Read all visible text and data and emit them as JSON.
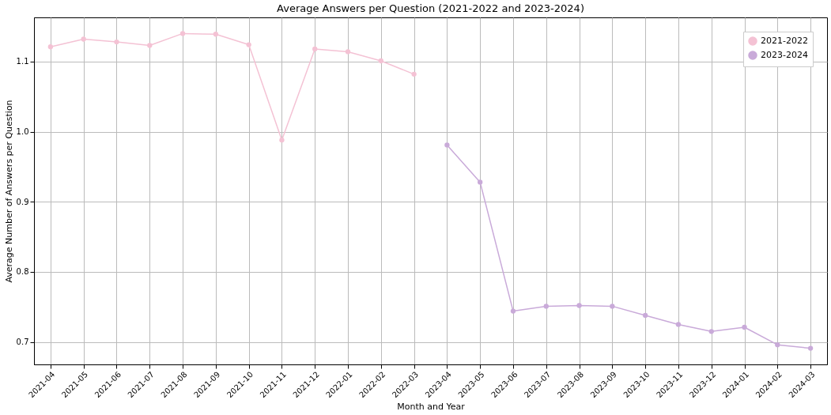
{
  "chart_data": {
    "type": "line",
    "title": "Average Answers per Question (2021-2022 and 2023-2024)",
    "xlabel": "Month and Year",
    "ylabel": "Average Number of Answers per Question",
    "categories": [
      "2021-04",
      "2021-05",
      "2021-06",
      "2021-07",
      "2021-08",
      "2021-09",
      "2021-10",
      "2021-11",
      "2021-12",
      "2022-01",
      "2022-02",
      "2022-03",
      "2023-04",
      "2023-05",
      "2023-06",
      "2023-07",
      "2023-08",
      "2023-09",
      "2023-10",
      "2023-11",
      "2023-12",
      "2024-01",
      "2024-02",
      "2024-03"
    ],
    "series": [
      {
        "name": "2021-2022",
        "color": "#f4c2d4",
        "values": [
          1.121,
          1.132,
          1.128,
          1.123,
          1.14,
          1.139,
          1.124,
          0.988,
          1.118,
          1.114,
          1.101,
          1.082,
          null,
          null,
          null,
          null,
          null,
          null,
          null,
          null,
          null,
          null,
          null,
          null
        ]
      },
      {
        "name": "2023-2024",
        "color": "#c9aad9",
        "values": [
          null,
          null,
          null,
          null,
          null,
          null,
          null,
          null,
          null,
          null,
          null,
          null,
          0.981,
          0.928,
          0.744,
          0.751,
          0.752,
          0.751,
          0.738,
          0.725,
          0.715,
          0.721,
          0.696,
          0.691
        ]
      }
    ],
    "ylim": [
      0.668,
      1.163
    ],
    "yticks": [
      0.7,
      0.8,
      0.9,
      {
        "value": 1,
        "label": "1.0"
      },
      1.1
    ],
    "grid": true,
    "legend": "top right",
    "marker": "circle",
    "line_style": "solid"
  }
}
